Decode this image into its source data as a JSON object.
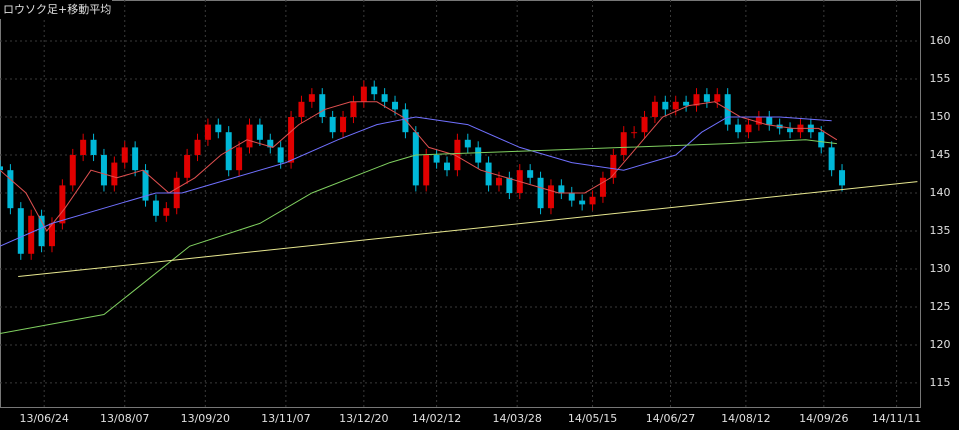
{
  "chart_data": {
    "type": "candlestick",
    "title": "ロウソク足+移動平均",
    "up_color": "#e00000",
    "down_color": "#00b8d8",
    "grid": true,
    "xlim": [
      0,
      354
    ],
    "ylim": [
      111.7,
      165.4
    ],
    "yticks": [
      115,
      120,
      125,
      130,
      135,
      140,
      145,
      150,
      155,
      160
    ],
    "xticks": [
      {
        "value": 17,
        "label": "13/06/24"
      },
      {
        "value": 48,
        "label": "13/08/07"
      },
      {
        "value": 79,
        "label": "13/09/20"
      },
      {
        "value": 110,
        "label": "13/11/07"
      },
      {
        "value": 140,
        "label": "13/12/20"
      },
      {
        "value": 168,
        "label": "14/02/12"
      },
      {
        "value": 199,
        "label": "14/03/28"
      },
      {
        "value": 228,
        "label": "14/05/15"
      },
      {
        "value": 258,
        "label": "14/06/27"
      },
      {
        "value": 287,
        "label": "14/08/12"
      },
      {
        "value": 317,
        "label": "14/09/26"
      },
      {
        "value": 345,
        "label": "14/11/11"
      }
    ],
    "x": [
      0,
      4,
      8,
      12,
      16,
      20,
      24,
      28,
      32,
      36,
      40,
      44,
      48,
      52,
      56,
      60,
      64,
      68,
      72,
      76,
      80,
      84,
      88,
      92,
      96,
      100,
      104,
      108,
      112,
      116,
      120,
      124,
      128,
      132,
      136,
      140,
      144,
      148,
      152,
      156,
      160,
      164,
      168,
      172,
      176,
      180,
      184,
      188,
      192,
      196,
      200,
      204,
      208,
      212,
      216,
      220,
      224,
      228,
      232,
      236,
      240,
      244,
      248,
      252,
      256,
      260,
      264,
      268,
      272,
      276,
      280,
      284,
      288,
      292,
      296,
      300,
      304,
      308,
      312,
      316,
      320,
      324
    ],
    "open": [
      143.5,
      143,
      138,
      132,
      137,
      133,
      136,
      141,
      145,
      147,
      145,
      141,
      144,
      146,
      143,
      139,
      137,
      138,
      142,
      145,
      147,
      149,
      148,
      143,
      146,
      149,
      147,
      146,
      144,
      150,
      152,
      153,
      150,
      148,
      150,
      152,
      154,
      153,
      152,
      151,
      148,
      141,
      145,
      144,
      143,
      147,
      146,
      144,
      141,
      142,
      140,
      143,
      142,
      138,
      141,
      140,
      139,
      138.5,
      139.5,
      142,
      145,
      148,
      148,
      150,
      152,
      151,
      152,
      151.5,
      153,
      152,
      153,
      149,
      148,
      149,
      150,
      149,
      148.5,
      148,
      149,
      148,
      146,
      143
    ],
    "high": [
      144.3,
      143.8,
      138.8,
      137.8,
      137.8,
      136.8,
      141.8,
      145.8,
      147.8,
      147.8,
      145.8,
      144.8,
      146.8,
      146.8,
      143.8,
      139.8,
      138.8,
      142.8,
      145.8,
      147.8,
      149.8,
      149.8,
      148.8,
      146.8,
      149.8,
      149.8,
      147.8,
      146.8,
      150.8,
      152.8,
      153.8,
      153.8,
      150.8,
      150.8,
      152.8,
      154.8,
      154.8,
      153.8,
      152.8,
      151.8,
      148.8,
      145.8,
      145.8,
      144.8,
      147.8,
      147.8,
      146.8,
      144.8,
      142.8,
      142.8,
      143.8,
      143.8,
      142.8,
      141.8,
      141.8,
      140.8,
      139.8,
      140.3,
      142.8,
      145.8,
      148.8,
      148.8,
      150.8,
      152.8,
      152.8,
      152.8,
      152.8,
      153.8,
      153.8,
      153.8,
      153.8,
      149.8,
      149.8,
      150.8,
      150.8,
      149.8,
      149.3,
      149.8,
      149.8,
      148.8,
      146.8,
      143.8
    ],
    "low": [
      142.2,
      137.2,
      131.2,
      131.2,
      132.2,
      132.2,
      135.2,
      140.2,
      144.2,
      144.2,
      140.2,
      140.2,
      143.2,
      142.2,
      138.2,
      136.2,
      136.2,
      137.2,
      141.2,
      144.2,
      146.2,
      147.2,
      142.2,
      142.2,
      145.2,
      146.2,
      145.2,
      143.2,
      143.2,
      149.2,
      151.2,
      149.2,
      147.2,
      147.2,
      149.2,
      151.2,
      152.2,
      151.2,
      150.2,
      147.2,
      140.2,
      140.2,
      143.2,
      142.2,
      142.2,
      145.2,
      143.2,
      140.2,
      140.2,
      139.2,
      139.2,
      141.2,
      137.2,
      137.2,
      139.2,
      138.2,
      137.7,
      137.7,
      138.7,
      141.2,
      144.2,
      147.2,
      147.2,
      149.2,
      150.2,
      150.2,
      150.7,
      150.7,
      151.2,
      151.2,
      148.2,
      147.2,
      147.2,
      148.2,
      148.2,
      147.7,
      147.2,
      147.2,
      147.2,
      145.2,
      142.2,
      140.2
    ],
    "close": [
      143,
      138,
      132,
      137,
      133,
      136,
      141,
      145,
      147,
      145,
      141,
      144,
      146,
      143,
      139,
      137,
      138,
      142,
      145,
      147,
      149,
      148,
      143,
      146,
      149,
      147,
      146,
      144,
      150,
      152,
      153,
      150,
      148,
      150,
      152,
      154,
      153,
      152,
      151,
      148,
      141,
      145,
      144,
      143,
      147,
      146,
      144,
      141,
      142,
      140,
      143,
      142,
      138,
      141,
      140,
      139,
      138.5,
      139.5,
      142,
      145,
      148,
      148,
      150,
      152,
      151,
      152,
      151.5,
      153,
      152,
      153,
      149,
      148,
      149,
      150,
      149,
      148.5,
      148,
      149,
      148,
      146,
      143,
      141
    ],
    "lines": [
      {
        "color": "#e05050",
        "x": [
          0,
          10,
          18,
          25,
          35,
          45,
          55,
          65,
          75,
          85,
          95,
          105,
          115,
          125,
          135,
          145,
          155,
          165,
          175,
          185,
          195,
          205,
          215,
          225,
          235,
          245,
          255,
          265,
          275,
          285,
          295,
          305,
          315,
          322
        ],
        "values": [
          143,
          140,
          135,
          138,
          143,
          142,
          143,
          140,
          142,
          145,
          147,
          146,
          149,
          151,
          152,
          152,
          150,
          146,
          145,
          143,
          142,
          141,
          140,
          140,
          142,
          146,
          150,
          151.5,
          152,
          150,
          149,
          148.5,
          148.5,
          147
        ]
      },
      {
        "color": "#7070ff",
        "x": [
          0,
          20,
          40,
          60,
          70,
          90,
          110,
          130,
          145,
          160,
          180,
          200,
          220,
          240,
          260,
          270,
          280,
          300,
          320
        ],
        "values": [
          133,
          136,
          138,
          140,
          140,
          142,
          144,
          147,
          149,
          150,
          149,
          146,
          144,
          143,
          145,
          148,
          150,
          150,
          149.5
        ]
      },
      {
        "color": "#80d060",
        "x": [
          0,
          40,
          73,
          100,
          120,
          150,
          160,
          200,
          240,
          280,
          310,
          322
        ],
        "values": [
          121.5,
          124,
          133,
          136,
          140,
          144,
          145,
          145.5,
          146,
          146.5,
          147,
          146.5
        ]
      },
      {
        "color": "#e8e890",
        "x": [
          7,
          353
        ],
        "values": [
          129,
          141.5
        ]
      }
    ]
  }
}
